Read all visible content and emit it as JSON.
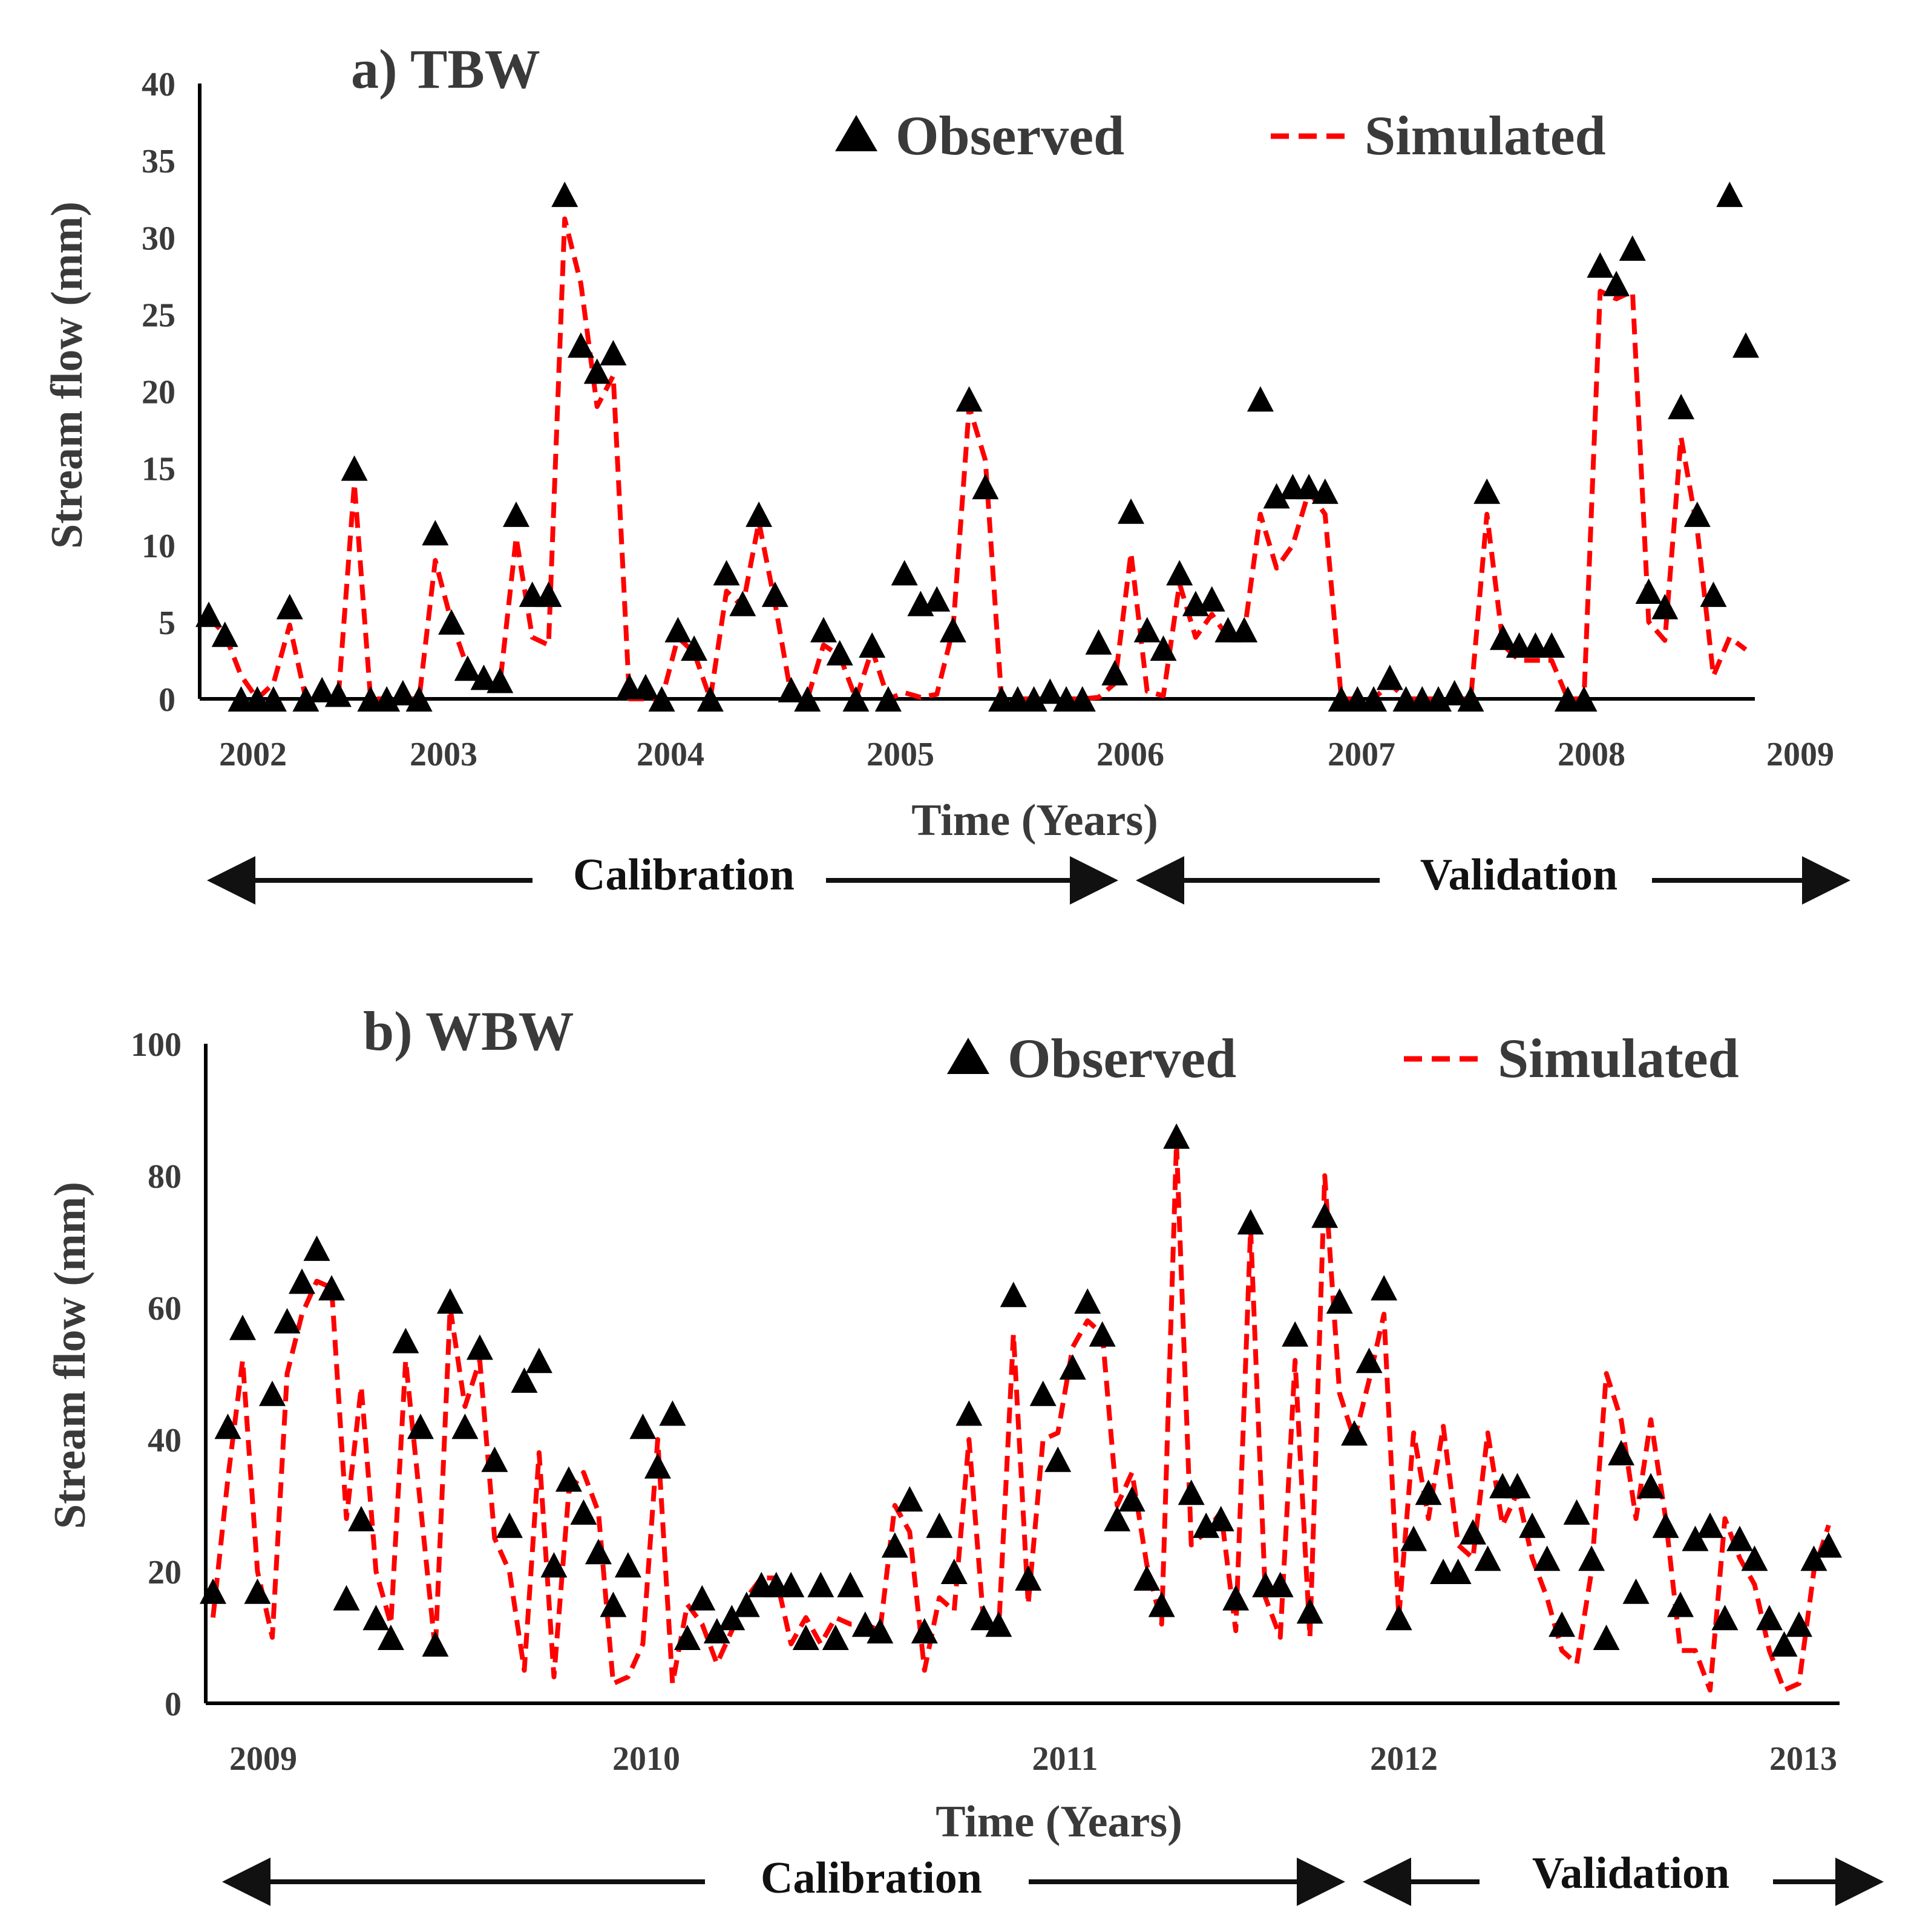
{
  "colors": {
    "observed": "#000000",
    "simulated": "#ff0000",
    "axis": "#000000",
    "text": "#3a3a3a"
  },
  "chart_data": [
    {
      "type": "line",
      "title": "a) TBW",
      "xlabel": "Time (Years)",
      "ylabel": "Stream flow (mm)",
      "ylim": [
        0,
        40
      ],
      "yticks": [
        "0",
        "5",
        "10",
        "15",
        "20",
        "25",
        "30",
        "35",
        "40"
      ],
      "xticks": [
        "2002",
        "2003",
        "2004",
        "2005",
        "2006",
        "2007",
        "2008",
        "2009"
      ],
      "legend": {
        "observed": "Observed",
        "simulated": "Simulated",
        "position": "top-right"
      },
      "periods": {
        "calibration": "Calibration",
        "validation": "Validation"
      },
      "series": [
        {
          "name": "Observed",
          "style": "triangle-markers",
          "values": [
            5.5,
            4.2,
            0,
            0,
            0,
            6,
            0,
            0.6,
            0.3,
            15,
            0,
            0,
            0.4,
            0,
            10.8,
            5,
            2,
            1.4,
            1.2,
            12,
            6.8,
            6.8,
            32.8,
            23,
            21.3,
            22.5,
            0.8,
            0.8,
            0,
            4.5,
            3.3,
            0,
            8.2,
            6.2,
            12,
            6.8,
            0.6,
            0,
            4.5,
            3,
            0,
            3.5,
            0,
            8.2,
            6.2,
            6.5,
            4.5,
            19.5,
            13.8,
            0,
            0,
            0,
            0.5,
            0,
            0,
            3.7,
            1.7,
            12.2,
            4.5,
            3.3,
            8.2,
            6.2,
            6.5,
            4.5,
            4.5,
            19.5,
            13.2,
            13.8,
            13.8,
            13.5,
            0,
            0,
            0,
            1.4,
            0,
            0,
            0,
            0.4,
            0,
            13.5,
            4,
            3.5,
            3.5,
            3.5,
            0,
            0,
            28.2,
            27,
            29.3,
            7,
            6,
            19,
            12,
            6.8,
            32.8,
            23
          ]
        },
        {
          "name": "Simulated",
          "style": "dashed-line",
          "values": [
            5.3,
            4.2,
            1.5,
            0,
            1,
            4.8,
            0,
            0.2,
            0,
            14,
            0,
            0,
            0,
            0,
            9,
            5,
            2,
            1,
            1,
            10.5,
            4,
            3.5,
            31.2,
            27,
            19,
            21,
            0,
            0,
            0,
            4,
            3,
            0,
            7,
            6,
            11.5,
            6.2,
            0.2,
            0,
            3.5,
            2.8,
            0,
            3.2,
            0,
            0.4,
            0.1,
            0.3,
            4.5,
            19,
            15.5,
            0,
            0,
            0,
            0,
            0,
            0,
            0.1,
            1,
            9.5,
            0.5,
            0.2,
            7.5,
            4,
            5.5,
            4,
            4.3,
            12,
            8.5,
            10,
            13.5,
            12,
            0,
            0,
            0,
            1,
            0,
            0,
            0,
            0,
            0,
            12,
            3.5,
            2.5,
            2.5,
            2.5,
            0,
            0,
            26.5,
            26,
            26.5,
            5,
            3.8,
            17,
            11,
            1.5,
            4,
            3.2
          ]
        }
      ]
    },
    {
      "type": "line",
      "title": "b) WBW",
      "xlabel": "Time (Years)",
      "ylabel": "Stream flow (mm)",
      "ylim": [
        0,
        100
      ],
      "yticks": [
        "0",
        "20",
        "40",
        "60",
        "80",
        "100"
      ],
      "xticks": [
        "2009",
        "2010",
        "2011",
        "2012",
        "2013"
      ],
      "legend": {
        "observed": "Observed",
        "simulated": "Simulated",
        "position": "top-right"
      },
      "periods": {
        "calibration": "Calibration",
        "validation": "Validation"
      },
      "series": [
        {
          "name": "Observed",
          "style": "triangle-markers",
          "values": [
            17,
            42,
            57,
            17,
            47,
            58,
            64,
            69,
            63,
            16,
            28,
            13,
            10,
            55,
            42,
            9,
            61,
            42,
            54,
            37,
            27,
            49,
            52,
            21,
            34,
            29,
            23,
            15,
            21,
            42,
            36,
            44,
            10,
            16,
            11,
            13,
            15,
            18,
            18,
            18,
            10,
            18,
            10,
            18,
            12,
            11,
            24,
            31,
            11,
            27,
            20,
            44,
            13,
            12,
            62,
            19,
            47,
            37,
            51,
            61,
            56,
            28,
            31,
            19,
            15,
            86,
            32,
            27,
            28,
            16,
            73,
            18,
            18,
            56,
            14,
            74,
            61,
            41,
            52,
            63,
            13,
            25,
            32,
            20,
            20,
            26,
            22,
            33,
            33,
            27,
            22,
            12,
            29,
            22,
            10,
            38,
            17,
            33,
            27,
            15,
            25,
            27,
            13,
            25,
            22,
            13,
            9,
            12,
            22,
            24
          ]
        },
        {
          "name": "Simulated",
          "style": "dashed-line",
          "values": [
            13,
            34,
            52,
            20,
            10,
            50,
            59,
            64,
            63,
            28,
            48,
            20,
            12,
            52,
            30,
            8,
            60,
            45,
            52,
            25,
            20,
            5,
            38,
            4,
            32,
            35,
            29,
            3,
            4,
            9,
            40,
            3,
            15,
            12,
            6,
            11,
            16,
            19,
            19,
            9,
            13,
            9,
            13,
            12,
            12,
            11,
            30,
            26,
            5,
            16,
            14,
            40,
            12,
            11,
            56,
            15,
            40,
            41,
            54,
            58,
            56,
            30,
            35,
            21,
            12,
            85,
            24,
            26,
            29,
            11,
            72,
            16,
            10,
            52,
            10,
            80,
            47,
            40,
            49,
            59,
            13,
            41,
            28,
            42,
            24,
            22,
            41,
            27,
            32,
            22,
            16,
            8,
            6,
            20,
            50,
            43,
            28,
            43,
            28,
            8,
            8,
            2,
            28,
            22,
            18,
            8,
            2,
            3,
            20,
            27
          ]
        }
      ]
    }
  ]
}
